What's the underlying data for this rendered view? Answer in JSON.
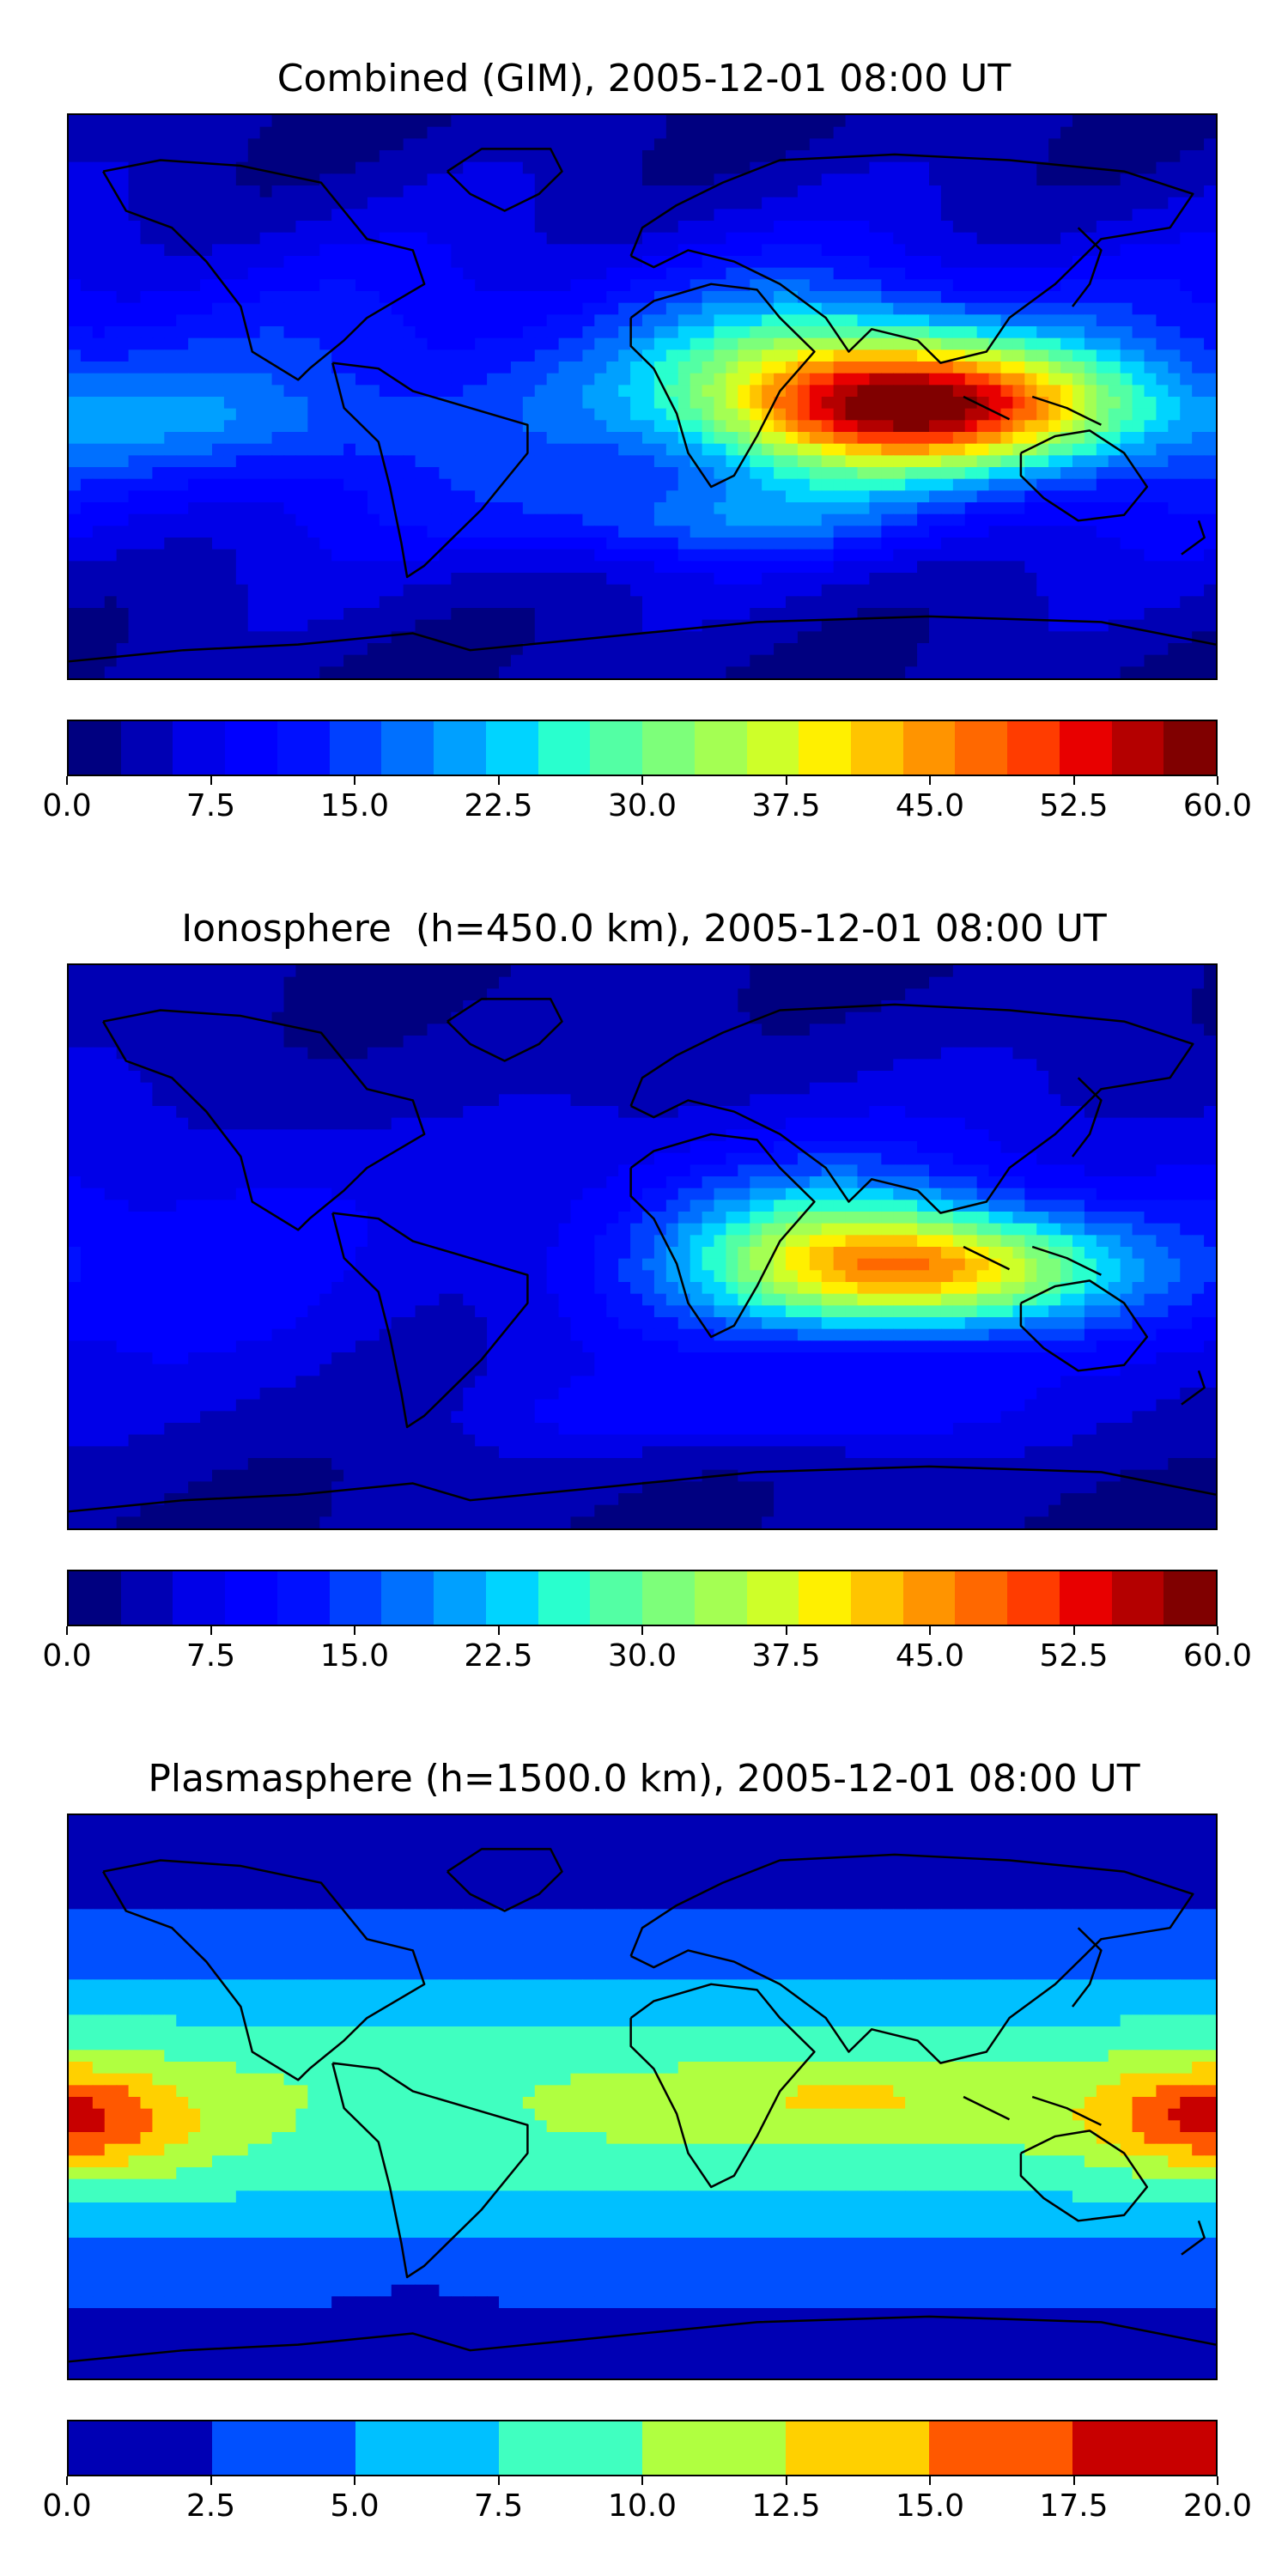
{
  "panels": [
    {
      "title": "Combined (GIM), 2005-12-01 08:00 UT",
      "field": "gim",
      "colorbar": {
        "colors": [
          "#000080",
          "#0000b4",
          "#0000e8",
          "#0000ff",
          "#0010ff",
          "#0040ff",
          "#0070ff",
          "#00a0ff",
          "#00d4ff",
          "#29ffce",
          "#53ffa4",
          "#7dff7a",
          "#a4ff53",
          "#ceff29",
          "#fff000",
          "#ffc400",
          "#ff9400",
          "#ff6800",
          "#ff3c00",
          "#e80000",
          "#b40000",
          "#800000"
        ],
        "ticks": [
          "0.0",
          "7.5",
          "15.0",
          "22.5",
          "30.0",
          "37.5",
          "45.0",
          "52.5",
          "60.0"
        ],
        "min": 0,
        "max": 60
      }
    },
    {
      "title": "Ionosphere  (h=450.0 km), 2005-12-01 08:00 UT",
      "field": "iono",
      "colorbar": {
        "colors": [
          "#000080",
          "#0000b4",
          "#0000e8",
          "#0000ff",
          "#0010ff",
          "#0040ff",
          "#0070ff",
          "#00a0ff",
          "#00d4ff",
          "#29ffce",
          "#53ffa4",
          "#7dff7a",
          "#a4ff53",
          "#ceff29",
          "#fff000",
          "#ffc400",
          "#ff9400",
          "#ff6800",
          "#ff3c00",
          "#e80000",
          "#b40000",
          "#800000"
        ],
        "ticks": [
          "0.0",
          "7.5",
          "15.0",
          "22.5",
          "30.0",
          "37.5",
          "45.0",
          "52.5",
          "60.0"
        ],
        "min": 0,
        "max": 60
      }
    },
    {
      "title": "Plasmasphere (h=1500.0 km), 2005-12-01 08:00 UT",
      "field": "plasma",
      "colorbar": {
        "colors": [
          "#0000b4",
          "#0050ff",
          "#00c0ff",
          "#40ffc0",
          "#b0ff40",
          "#ffd000",
          "#ff5800",
          "#c80000"
        ],
        "ticks": [
          "0.0",
          "2.5",
          "5.0",
          "7.5",
          "10.0",
          "12.5",
          "15.0",
          "17.5",
          "20.0"
        ],
        "min": 0,
        "max": 20
      }
    }
  ],
  "map_overlay": {
    "coastline_color": "#000000",
    "land_outlines": [
      "north-america",
      "south-america",
      "greenland",
      "eurasia",
      "africa",
      "australia",
      "antarctica",
      "japan",
      "indonesia",
      "new-zealand"
    ]
  }
}
